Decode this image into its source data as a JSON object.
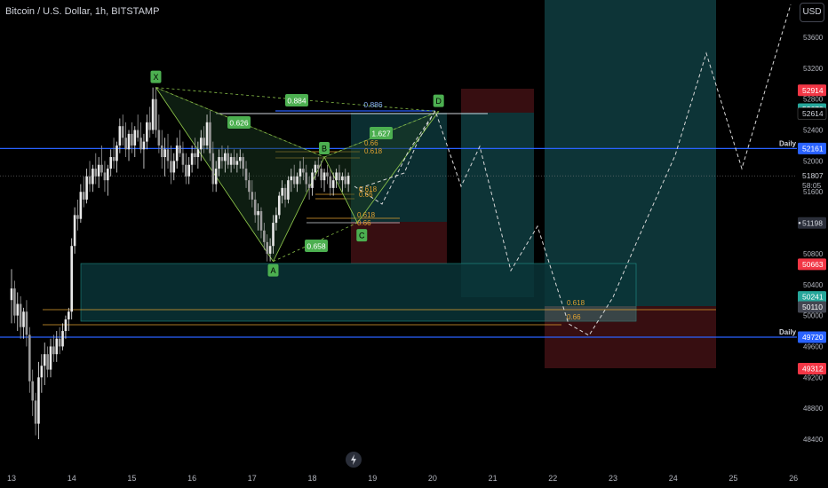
{
  "header": {
    "title": "Bitcoin / U.S. Dollar, 1h, BITSTAMP",
    "currency_button": "USD"
  },
  "colors": {
    "background": "#000000",
    "pattern_line": "#8bc34a",
    "pattern_fill": "#1b3a22",
    "fib_line": "#e0a030",
    "daily_line": "#2962ff",
    "box_teal": "#0e3a3d",
    "box_red": "#3d0f13",
    "candle_up": "#e8e8e8",
    "candle_down": "#9a9a9a",
    "label_green": "#4caf50",
    "label_red": "#f23645",
    "label_blue": "#2962ff"
  },
  "chart_data": {
    "type": "candlestick",
    "price_axis": {
      "ticks": [
        53600,
        53200,
        52800,
        52400,
        52000,
        51600,
        51200,
        50800,
        50400,
        50000,
        49600,
        49200,
        48800,
        48400
      ],
      "labels": [
        {
          "text": "52914",
          "price": 52914,
          "color": "#f23645"
        },
        {
          "text": "52670",
          "price": 52670,
          "color": "#26a69a"
        },
        {
          "text": "52614",
          "price": 52614,
          "color": "#000000",
          "text_color": "#d1d4dc",
          "border": true
        },
        {
          "text": "52161",
          "price": 52161,
          "color": "#2962ff"
        },
        {
          "text": "51807",
          "price": 51807,
          "color": "#000000",
          "text_color": "#d1d4dc",
          "border": false,
          "sub": "58:05"
        },
        {
          "text": "51198",
          "price": 51198,
          "color": "#2a2e39",
          "text_color": "#d1d4dc",
          "dot": true
        },
        {
          "text": "50663",
          "price": 50663,
          "color": "#f23645"
        },
        {
          "text": "50241",
          "price": 50241,
          "color": "#26a69a"
        },
        {
          "text": "50110",
          "price": 50110,
          "color": "#434651"
        },
        {
          "text": "49720",
          "price": 49720,
          "color": "#2962ff"
        },
        {
          "text": "49312",
          "price": 49312,
          "color": "#f23645"
        }
      ]
    },
    "time_axis": {
      "labels": [
        "13",
        "14",
        "15",
        "16",
        "17",
        "18",
        "19",
        "20",
        "21",
        "22",
        "23",
        "24",
        "25",
        "26"
      ]
    },
    "daily_levels": [
      {
        "price": 52161,
        "label": "Daily"
      },
      {
        "price": 49720,
        "label": "Daily"
      }
    ],
    "current_price": 51807,
    "harmonic_pattern": {
      "points": [
        {
          "name": "X",
          "day": 15.4,
          "price": 52950
        },
        {
          "name": "A",
          "day": 17.35,
          "price": 50700
        },
        {
          "name": "B",
          "day": 18.2,
          "price": 52050
        },
        {
          "name": "C",
          "day": 18.75,
          "price": 51200
        },
        {
          "name": "D",
          "day": 20.1,
          "price": 52640
        }
      ],
      "ratios": [
        {
          "text": "0.884",
          "day": 15.8,
          "price": 52700
        },
        {
          "text": "0.626",
          "day": 15.6,
          "price": 52450
        },
        {
          "text": "1.627",
          "day": 19.6,
          "price": 52300
        },
        {
          "text": "0.658",
          "day": 17.5,
          "price": 50900
        }
      ],
      "d_level_text": "0.886"
    },
    "fib_levels_upper": [
      "0.66",
      "0.618"
    ],
    "fib_levels_small": [
      "0.618",
      "0.66"
    ],
    "fib_levels_mid": [
      "0.618",
      "0.66"
    ],
    "fib_levels_lower": [
      "0.618",
      "0.66"
    ],
    "candles": [
      [
        13.0,
        50200,
        50600,
        49900,
        50350
      ],
      [
        13.05,
        50350,
        50450,
        49900,
        50000
      ],
      [
        13.1,
        50000,
        50300,
        49800,
        50150
      ],
      [
        13.15,
        50150,
        50250,
        49700,
        49850
      ],
      [
        13.2,
        49850,
        50100,
        49700,
        50050
      ],
      [
        13.25,
        50050,
        50200,
        49600,
        49750
      ],
      [
        13.3,
        49750,
        49850,
        49000,
        49150
      ],
      [
        13.35,
        49150,
        49300,
        48700,
        48900
      ],
      [
        13.4,
        48900,
        49000,
        48450,
        48600
      ],
      [
        13.45,
        48600,
        49400,
        48400,
        49200
      ],
      [
        13.5,
        49200,
        49500,
        49000,
        49350
      ],
      [
        13.55,
        49350,
        49650,
        49100,
        49500
      ],
      [
        13.6,
        49500,
        49600,
        49200,
        49300
      ],
      [
        13.65,
        49300,
        49700,
        49200,
        49600
      ],
      [
        13.7,
        49600,
        49750,
        49400,
        49500
      ],
      [
        13.75,
        49500,
        49800,
        49400,
        49700
      ],
      [
        13.8,
        49700,
        49850,
        49500,
        49600
      ],
      [
        13.85,
        49600,
        49900,
        49550,
        49800
      ],
      [
        13.9,
        49800,
        50000,
        49700,
        49950
      ],
      [
        13.95,
        49950,
        50100,
        49800,
        50050
      ],
      [
        14.0,
        50050,
        51000,
        49950,
        50900
      ],
      [
        14.05,
        50900,
        51400,
        50800,
        51300
      ],
      [
        14.1,
        51300,
        51500,
        51100,
        51250
      ],
      [
        14.15,
        51250,
        51700,
        51200,
        51600
      ],
      [
        14.2,
        51600,
        51800,
        51400,
        51500
      ],
      [
        14.25,
        51500,
        51900,
        51450,
        51800
      ],
      [
        14.3,
        51800,
        52000,
        51600,
        51700
      ],
      [
        14.35,
        51700,
        51950,
        51600,
        51900
      ],
      [
        14.4,
        51900,
        52100,
        51700,
        51800
      ],
      [
        14.45,
        51800,
        52050,
        51650,
        51950
      ],
      [
        14.5,
        51950,
        52200,
        51800,
        51850
      ],
      [
        14.55,
        51850,
        52000,
        51600,
        51750
      ],
      [
        14.6,
        51750,
        51950,
        51550,
        51900
      ],
      [
        14.65,
        51900,
        52150,
        51800,
        52050
      ],
      [
        14.7,
        52050,
        52300,
        51900,
        52000
      ],
      [
        14.75,
        52000,
        52250,
        51850,
        52200
      ],
      [
        14.8,
        52200,
        52550,
        52100,
        52450
      ],
      [
        14.85,
        52450,
        52600,
        52200,
        52300
      ],
      [
        14.9,
        52300,
        52500,
        52050,
        52150
      ],
      [
        14.95,
        52150,
        52400,
        52000,
        52350
      ],
      [
        15.0,
        52350,
        52500,
        52100,
        52200
      ],
      [
        15.05,
        52200,
        52450,
        52050,
        52400
      ],
      [
        15.1,
        52400,
        52600,
        52250,
        52300
      ],
      [
        15.15,
        52300,
        52500,
        52100,
        52150
      ],
      [
        15.2,
        52150,
        52350,
        51900,
        52250
      ],
      [
        15.25,
        52250,
        52600,
        52150,
        52500
      ],
      [
        15.3,
        52500,
        52700,
        52300,
        52400
      ],
      [
        15.35,
        52400,
        52950,
        52350,
        52800
      ],
      [
        15.4,
        52800,
        52950,
        52300,
        52400
      ],
      [
        15.45,
        52400,
        52600,
        52100,
        52200
      ],
      [
        15.5,
        52200,
        52400,
        51900,
        52050
      ],
      [
        15.55,
        52050,
        52300,
        51800,
        52150
      ],
      [
        15.6,
        52150,
        52350,
        51900,
        52000
      ],
      [
        15.65,
        52000,
        52200,
        51700,
        51850
      ],
      [
        15.7,
        51850,
        52100,
        51750,
        52000
      ],
      [
        15.75,
        52000,
        52300,
        51900,
        52200
      ],
      [
        15.8,
        52200,
        52400,
        52050,
        52100
      ],
      [
        15.85,
        52100,
        52250,
        51850,
        51950
      ],
      [
        15.9,
        51950,
        52100,
        51700,
        51800
      ],
      [
        15.95,
        51800,
        52050,
        51700,
        51950
      ],
      [
        16.0,
        51950,
        52200,
        51850,
        52100
      ],
      [
        16.05,
        52100,
        52300,
        51950,
        52050
      ],
      [
        16.1,
        52050,
        52250,
        51900,
        52150
      ],
      [
        16.15,
        52150,
        52400,
        52000,
        52300
      ],
      [
        16.2,
        52300,
        52450,
        52100,
        52200
      ],
      [
        16.25,
        52200,
        52600,
        52150,
        52500
      ],
      [
        16.3,
        52500,
        52650,
        52000,
        52100
      ],
      [
        16.35,
        52100,
        52250,
        51600,
        51700
      ],
      [
        16.4,
        51700,
        52000,
        51600,
        51900
      ],
      [
        16.45,
        51900,
        52150,
        51800,
        52050
      ],
      [
        16.5,
        52050,
        52200,
        51900,
        52000
      ],
      [
        16.55,
        52000,
        52150,
        51850,
        52100
      ],
      [
        16.6,
        52100,
        52200,
        51900,
        51950
      ],
      [
        16.65,
        51950,
        52100,
        51850,
        52050
      ],
      [
        16.7,
        52050,
        52150,
        51900,
        51950
      ],
      [
        16.75,
        51950,
        52100,
        51850,
        52000
      ],
      [
        16.8,
        52000,
        52150,
        51900,
        52050
      ],
      [
        16.85,
        52050,
        52100,
        51800,
        51900
      ],
      [
        16.9,
        51900,
        52000,
        51650,
        51750
      ],
      [
        16.95,
        51750,
        51850,
        51500,
        51600
      ],
      [
        17.0,
        51600,
        51750,
        51400,
        51500
      ],
      [
        17.05,
        51500,
        51600,
        51200,
        51300
      ],
      [
        17.1,
        51300,
        51450,
        51100,
        51350
      ],
      [
        17.15,
        51350,
        51400,
        51000,
        51100
      ],
      [
        17.2,
        51100,
        51200,
        50850,
        50950
      ],
      [
        17.25,
        50950,
        51050,
        50700,
        50800
      ],
      [
        17.3,
        50800,
        51000,
        50700,
        50900
      ],
      [
        17.35,
        50900,
        51300,
        50800,
        51200
      ],
      [
        17.4,
        51200,
        51400,
        51100,
        51300
      ],
      [
        17.45,
        51300,
        51600,
        51250,
        51550
      ],
      [
        17.5,
        51550,
        51750,
        51450,
        51650
      ],
      [
        17.55,
        51650,
        51700,
        51400,
        51500
      ],
      [
        17.6,
        51500,
        51800,
        51450,
        51750
      ],
      [
        17.65,
        51750,
        51900,
        51600,
        51800
      ],
      [
        17.7,
        51800,
        51950,
        51650,
        51700
      ],
      [
        17.75,
        51700,
        51850,
        51600,
        51800
      ],
      [
        17.8,
        51800,
        52000,
        51700,
        51900
      ],
      [
        17.85,
        51900,
        52050,
        51750,
        51850
      ],
      [
        17.9,
        51850,
        51950,
        51600,
        51700
      ],
      [
        17.95,
        51700,
        51800,
        51500,
        51650
      ],
      [
        18.0,
        51650,
        51900,
        51550,
        51850
      ],
      [
        18.05,
        51850,
        52000,
        51750,
        51950
      ],
      [
        18.1,
        51950,
        52050,
        51800,
        51900
      ],
      [
        18.15,
        51900,
        52000,
        51650,
        51750
      ],
      [
        18.2,
        51750,
        51900,
        51600,
        51850
      ],
      [
        18.25,
        51850,
        51950,
        51700,
        51800
      ],
      [
        18.3,
        51800,
        51900,
        51550,
        51650
      ],
      [
        18.35,
        51650,
        51850,
        51550,
        51750
      ],
      [
        18.4,
        51750,
        51900,
        51650,
        51850
      ],
      [
        18.45,
        51850,
        51950,
        51700,
        51750
      ],
      [
        18.5,
        51750,
        51850,
        51600,
        51800
      ],
      [
        18.55,
        51800,
        51900,
        51650,
        51700
      ],
      [
        18.6,
        51700,
        51850,
        51600,
        51807
      ]
    ]
  }
}
